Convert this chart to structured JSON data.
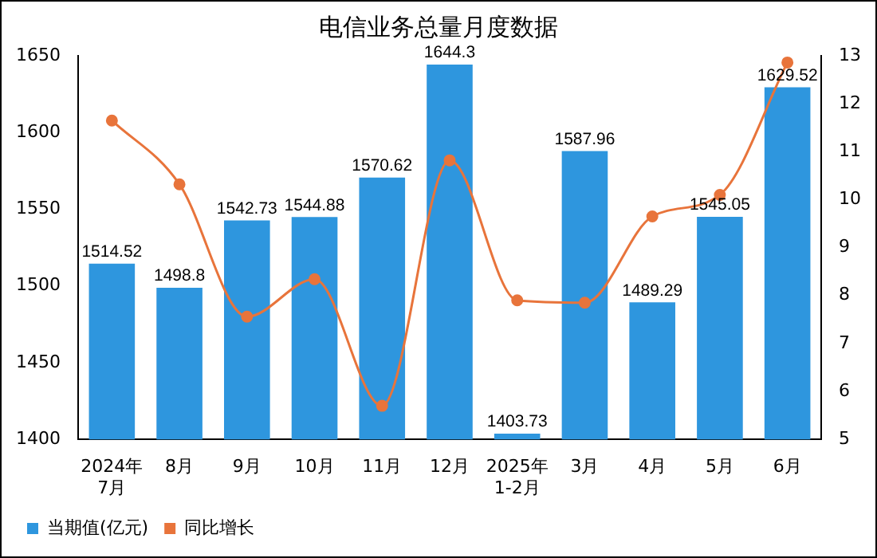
{
  "chart_data": {
    "type": "bar",
    "title": "电信业务总量月度数据",
    "categories": [
      "2024年\n7月",
      "8月",
      "9月",
      "10月",
      "11月",
      "12月",
      "2025年\n1-2月",
      "3月",
      "4月",
      "5月",
      "6月"
    ],
    "series": [
      {
        "name": "当期值(亿元)",
        "color": "#2e96de",
        "values": [
          1514.52,
          1498.8,
          1542.73,
          1544.88,
          1570.62,
          1644.3,
          1403.73,
          1587.96,
          1489.29,
          1545.05,
          1629.52
        ],
        "value_labels": [
          "1514.52",
          "1498.8",
          "1542.73",
          "1544.88",
          "1570.62",
          "1644.3",
          "1403.73",
          "1587.96",
          "1489.29",
          "1545.05",
          "1629.52"
        ]
      },
      {
        "name": "同比增长",
        "type": "line",
        "axis": "y2",
        "color": "#e8743b",
        "values": [
          11.65,
          10.32,
          7.56,
          8.34,
          5.7,
          10.82,
          7.9,
          7.85,
          9.65,
          10.1,
          12.86
        ]
      }
    ],
    "ylim": [
      1400,
      1650
    ],
    "yticks": [
      1400,
      1450,
      1500,
      1550,
      1600,
      1650
    ],
    "y2lim": [
      5,
      13
    ],
    "y2ticks": [
      5,
      6,
      7,
      8,
      9,
      10,
      11,
      12,
      13
    ],
    "grid": false,
    "legend": "bottom left",
    "marker": "circle",
    "line_style": "solid"
  }
}
